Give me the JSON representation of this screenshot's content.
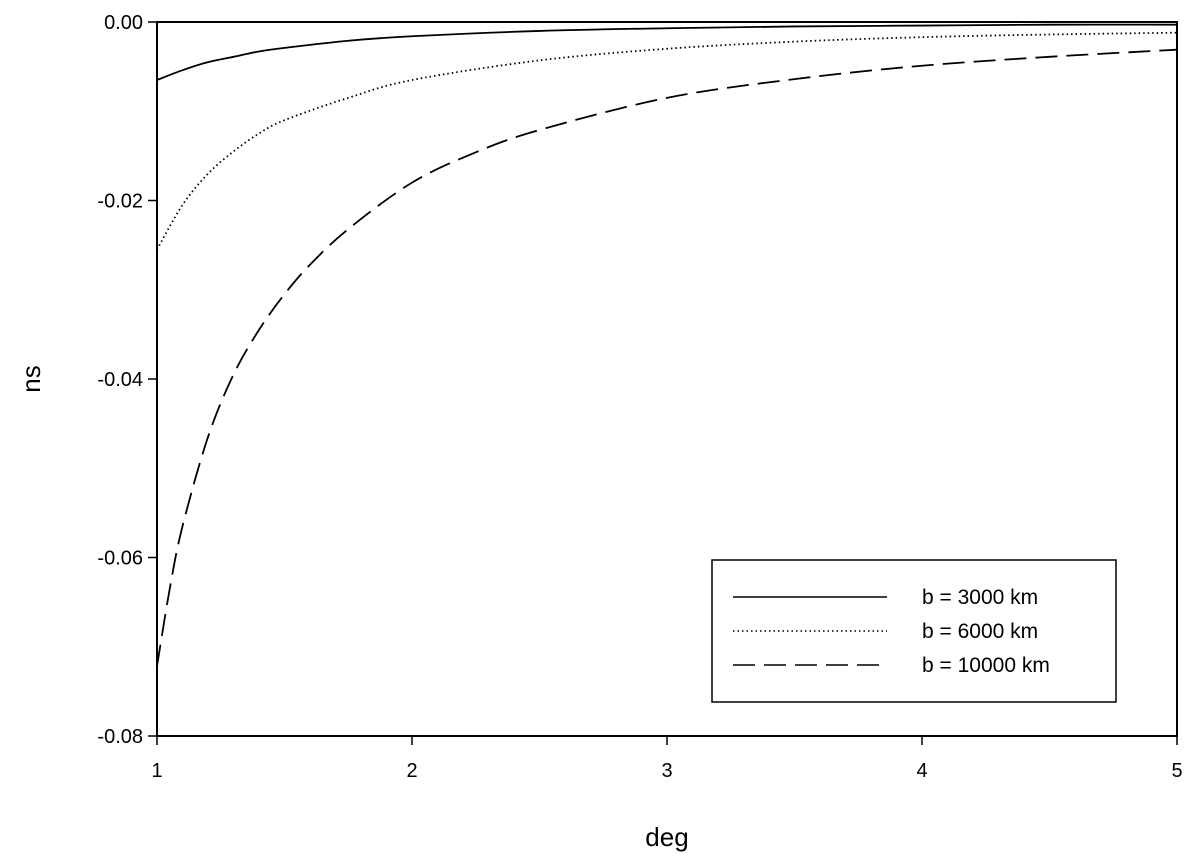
{
  "chart_data": {
    "type": "line",
    "xlabel": "deg",
    "ylabel": "ns",
    "xlim": [
      1,
      5
    ],
    "ylim": [
      -0.08,
      0.0
    ],
    "x_ticks": [
      "1",
      "2",
      "3",
      "4",
      "5"
    ],
    "y_ticks": [
      "0.00",
      "-0.02",
      "-0.04",
      "-0.06",
      "-0.08"
    ],
    "grid": false,
    "legend_position": "bottom-right",
    "series": [
      {
        "name": "b = 3000 km",
        "style": "solid",
        "x": [
          1.0,
          1.1,
          1.2,
          1.3,
          1.4,
          1.5,
          1.75,
          2.0,
          2.5,
          3.0,
          3.5,
          4.0,
          4.5,
          5.0
        ],
        "y": [
          -0.0065,
          -0.0054,
          -0.0045,
          -0.0039,
          -0.0033,
          -0.0029,
          -0.0021,
          -0.0016,
          -0.001,
          -0.0007,
          -0.0005,
          -0.0004,
          -0.0003,
          -0.0003
        ]
      },
      {
        "name": "b = 6000 km",
        "style": "dotted",
        "x": [
          1.0,
          1.1,
          1.2,
          1.3,
          1.4,
          1.5,
          1.75,
          2.0,
          2.5,
          3.0,
          3.5,
          4.0,
          4.5,
          5.0
        ],
        "y": [
          -0.0255,
          -0.0205,
          -0.017,
          -0.0145,
          -0.0125,
          -0.011,
          -0.0085,
          -0.0065,
          -0.0043,
          -0.003,
          -0.0022,
          -0.0017,
          -0.0014,
          -0.0012
        ]
      },
      {
        "name": "b = 10000 km",
        "style": "dashed",
        "x": [
          1.0,
          1.05,
          1.1,
          1.2,
          1.3,
          1.4,
          1.5,
          1.6,
          1.75,
          2.0,
          2.25,
          2.5,
          3.0,
          3.5,
          4.0,
          4.5,
          5.0
        ],
        "y": [
          -0.0722,
          -0.0635,
          -0.0565,
          -0.0465,
          -0.0395,
          -0.0345,
          -0.0305,
          -0.0272,
          -0.0232,
          -0.018,
          -0.0146,
          -0.0121,
          -0.0085,
          -0.0064,
          -0.0049,
          -0.0039,
          -0.0031
        ]
      }
    ]
  }
}
